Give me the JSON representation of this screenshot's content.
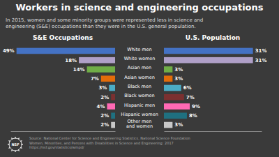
{
  "chart_data": [
    {
      "type": "bar",
      "orientation": "horizontal",
      "title": "Workers in science and engineering occupations",
      "subtitle": "In 2015, women and some minority groups were represented less in science and\nengineering (S&E) occupations than they were in the U.S. general population.",
      "categories": [
        "White men",
        "White women",
        "Asian men",
        "Asian women",
        "Black men",
        "Black women",
        "Hispanic men",
        "Hispanic women",
        "Other men\nand women"
      ],
      "series": [
        {
          "name": "S&E Occupations",
          "values": [
            49,
            18,
            14,
            7,
            3,
            2,
            4,
            2,
            2
          ],
          "value_labels": [
            "49%",
            "18%",
            "14%",
            "7%",
            "3%",
            "2%",
            "4%",
            "2%",
            "2%"
          ],
          "colors": [
            "#4472C4",
            "#B0A0C8",
            "#70AD47",
            "#E36C09",
            "#4BACC6",
            "#7B3030",
            "#FF69B4",
            "#1F7080",
            "#C8C8C8"
          ]
        }
      ],
      "xlim": [
        52,
        0
      ],
      "xticks": [],
      "data_labels": true,
      "tick_labels": false,
      "annotations": [
        "Source: National Center for Science and Engineering Statistics, National Science Foundation\nWomen, Minorities, and Persons with Disabilities in Science and Engineering: 2017\nhttps://nsf.gov/statistics/wmpd/",
        "NSF"
      ]
    },
    {
      "type": "bar",
      "orientation": "horizontal",
      "categories": [
        "White men",
        "White women",
        "Asian men",
        "Asian women",
        "Black men",
        "Black women",
        "Hispanic men",
        "Hispanic women",
        "Other men\nand women"
      ],
      "series": [
        {
          "name": "U.S. Population",
          "values": [
            31,
            31,
            3,
            3,
            6,
            7,
            9,
            8,
            3
          ],
          "value_labels": [
            "31%",
            "31%",
            "3%",
            "3%",
            "6%",
            "7%",
            "9%",
            "8%",
            "3%"
          ],
          "colors": [
            "#4472C4",
            "#B0A0C8",
            "#70AD47",
            "#E36C09",
            "#4BACC6",
            "#7B3030",
            "#FF69B4",
            "#1F7080",
            "#C8C8C8"
          ]
        }
      ],
      "xlim": [
        0,
        34
      ],
      "xticks": [],
      "data_labels": true,
      "tick_labels": false
    }
  ]
}
